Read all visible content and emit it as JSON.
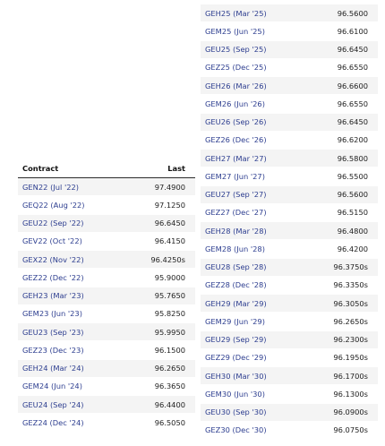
{
  "left_table": {
    "header": {
      "contract": "Contract",
      "last": "Last"
    },
    "rows": [
      {
        "contract": "GEN22 (Jul '22)",
        "last": "97.4900"
      },
      {
        "contract": "GEQ22 (Aug '22)",
        "last": "97.1250"
      },
      {
        "contract": "GEU22 (Sep '22)",
        "last": "96.6450"
      },
      {
        "contract": "GEV22 (Oct '22)",
        "last": "96.4150"
      },
      {
        "contract": "GEX22 (Nov '22)",
        "last": "96.4250s"
      },
      {
        "contract": "GEZ22 (Dec '22)",
        "last": "95.9000"
      },
      {
        "contract": "GEH23 (Mar '23)",
        "last": "95.7650"
      },
      {
        "contract": "GEM23 (Jun '23)",
        "last": "95.8250"
      },
      {
        "contract": "GEU23 (Sep '23)",
        "last": "95.9950"
      },
      {
        "contract": "GEZ23 (Dec '23)",
        "last": "96.1500"
      },
      {
        "contract": "GEH24 (Mar '24)",
        "last": "96.2650"
      },
      {
        "contract": "GEM24 (Jun '24)",
        "last": "96.3650"
      },
      {
        "contract": "GEU24 (Sep '24)",
        "last": "96.4400"
      },
      {
        "contract": "GEZ24 (Dec '24)",
        "last": "96.5050"
      }
    ]
  },
  "right_table": {
    "rows": [
      {
        "contract": "GEH25 (Mar '25)",
        "last": "96.5600"
      },
      {
        "contract": "GEM25 (Jun '25)",
        "last": "96.6100"
      },
      {
        "contract": "GEU25 (Sep '25)",
        "last": "96.6450"
      },
      {
        "contract": "GEZ25 (Dec '25)",
        "last": "96.6550"
      },
      {
        "contract": "GEH26 (Mar '26)",
        "last": "96.6600"
      },
      {
        "contract": "GEM26 (Jun '26)",
        "last": "96.6550"
      },
      {
        "contract": "GEU26 (Sep '26)",
        "last": "96.6450"
      },
      {
        "contract": "GEZ26 (Dec '26)",
        "last": "96.6200"
      },
      {
        "contract": "GEH27 (Mar '27)",
        "last": "96.5800"
      },
      {
        "contract": "GEM27 (Jun '27)",
        "last": "96.5500"
      },
      {
        "contract": "GEU27 (Sep '27)",
        "last": "96.5600"
      },
      {
        "contract": "GEZ27 (Dec '27)",
        "last": "96.5150"
      },
      {
        "contract": "GEH28 (Mar '28)",
        "last": "96.4800"
      },
      {
        "contract": "GEM28 (Jun '28)",
        "last": "96.4200"
      },
      {
        "contract": "GEU28 (Sep '28)",
        "last": "96.3750s"
      },
      {
        "contract": "GEZ28 (Dec '28)",
        "last": "96.3350s"
      },
      {
        "contract": "GEH29 (Mar '29)",
        "last": "96.3050s"
      },
      {
        "contract": "GEM29 (Jun '29)",
        "last": "96.2650s"
      },
      {
        "contract": "GEU29 (Sep '29)",
        "last": "96.2300s"
      },
      {
        "contract": "GEZ29 (Dec '29)",
        "last": "96.1950s"
      },
      {
        "contract": "GEH30 (Mar '30)",
        "last": "96.1700s"
      },
      {
        "contract": "GEM30 (Jun '30)",
        "last": "96.1300s"
      },
      {
        "contract": "GEU30 (Sep '30)",
        "last": "96.0900s"
      },
      {
        "contract": "GEZ30 (Dec '30)",
        "last": "96.0750s"
      }
    ]
  }
}
